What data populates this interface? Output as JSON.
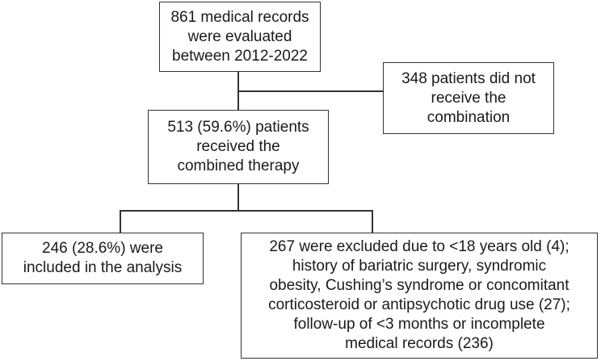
{
  "boxes": {
    "evaluated": {
      "lines": [
        "861 medical records",
        "were evaluated",
        "between 2012-2022"
      ]
    },
    "not_received": {
      "lines": [
        "348 patients did not",
        "receive the",
        "combination"
      ]
    },
    "received": {
      "lines": [
        "513 (59.6%) patients",
        "received the",
        "combined therapy"
      ]
    },
    "included": {
      "lines": [
        "246 (28.6%) were",
        "included in the analysis"
      ]
    },
    "excluded": {
      "lines": [
        "267 were excluded due to <18 years old (4);",
        "history of bariatric surgery, syndromic",
        "obesity, Cushing’s syndrome or concomitant",
        "corticosteroid or antipsychotic drug use (27);",
        "follow-up of <3 months or incomplete",
        "medical records (236)"
      ]
    }
  }
}
